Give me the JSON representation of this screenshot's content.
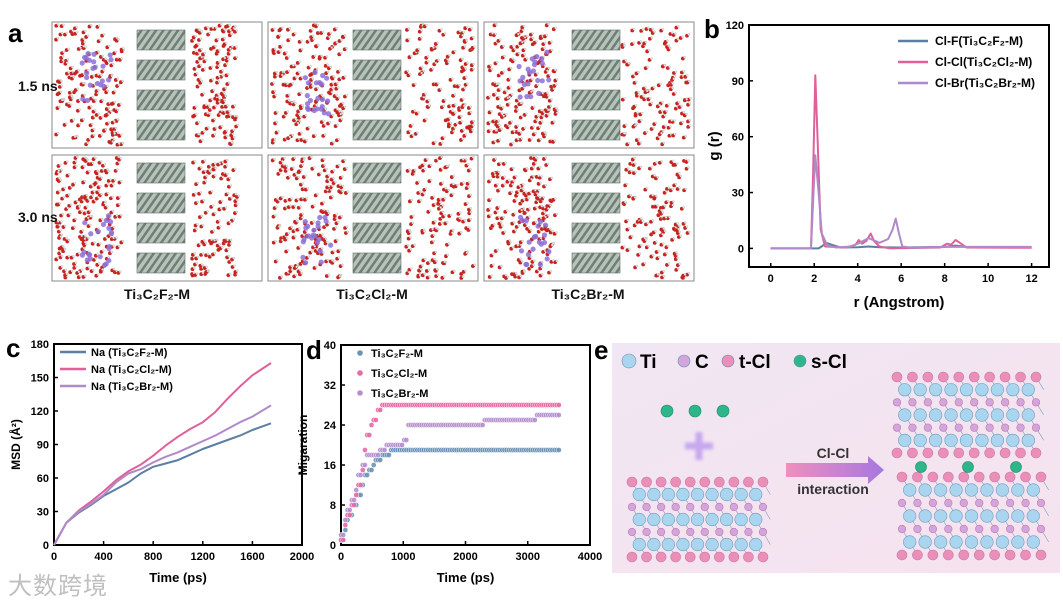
{
  "panels": {
    "a": "a",
    "b": "b",
    "c": "c",
    "d": "d",
    "e": "e"
  },
  "panel_a": {
    "rows": [
      "1.5 ns",
      "3.0 ns"
    ],
    "columns": [
      "Ti₃C₂F₂-M",
      "Ti₃C₂Cl₂-M",
      "Ti₃C₂Br₂-M"
    ]
  },
  "panel_e": {
    "legend": [
      {
        "label": "Ti",
        "color": "#a9d6ee"
      },
      {
        "label": "C",
        "color": "#d3a5dd"
      },
      {
        "label": "t-Cl",
        "color": "#ec8fb8"
      },
      {
        "label": "s-Cl",
        "color": "#2fb58a"
      }
    ],
    "arrow_top": "Cl-Cl",
    "arrow_bottom": "interaction"
  },
  "watermark": "大数跨境",
  "chart_data": [
    {
      "id": "b",
      "type": "line",
      "xlabel": "r (Angstrom)",
      "ylabel": "g (r)",
      "xlim": [
        -1,
        12.8
      ],
      "ylim": [
        -10,
        120
      ],
      "xticks": [
        0,
        2,
        4,
        6,
        8,
        10,
        12
      ],
      "yticks": [
        0,
        30,
        60,
        90,
        120
      ],
      "legend_position": "top-right",
      "series": [
        {
          "name": "Cl-F(Ti₃C₂F₂-M)",
          "color": "#5a7fa3",
          "points": [
            [
              0,
              0
            ],
            [
              2.2,
              0
            ],
            [
              2.4,
              1.5
            ],
            [
              2.55,
              3
            ],
            [
              2.8,
              2
            ],
            [
              3.2,
              0.5
            ],
            [
              4,
              0.6
            ],
            [
              4.5,
              1
            ],
            [
              5,
              0.6
            ],
            [
              6,
              0.5
            ],
            [
              8,
              0.8
            ],
            [
              8.5,
              1.5
            ],
            [
              9,
              0.8
            ],
            [
              10,
              0.5
            ],
            [
              12,
              0.5
            ]
          ]
        },
        {
          "name": "Cl-Cl(Ti₃C₂Cl₂-M)",
          "color": "#e0609a",
          "points": [
            [
              0,
              0
            ],
            [
              1.85,
              0
            ],
            [
              1.95,
              40
            ],
            [
              2.05,
              93
            ],
            [
              2.15,
              60
            ],
            [
              2.3,
              10
            ],
            [
              2.5,
              1
            ],
            [
              3.5,
              0.5
            ],
            [
              3.9,
              2
            ],
            [
              4.05,
              4.5
            ],
            [
              4.2,
              2.5
            ],
            [
              4.4,
              4
            ],
            [
              4.6,
              8
            ],
            [
              4.75,
              4
            ],
            [
              5,
              1
            ],
            [
              5.5,
              0
            ],
            [
              7.8,
              0.5
            ],
            [
              8.1,
              2.5
            ],
            [
              8.3,
              2
            ],
            [
              8.5,
              4.5
            ],
            [
              8.7,
              3
            ],
            [
              9,
              0.5
            ],
            [
              12,
              0.3
            ]
          ]
        },
        {
          "name": "Cl-Br(Ti₃C₂Br₂-M)",
          "color": "#b08ac8",
          "points": [
            [
              0,
              0
            ],
            [
              1.85,
              0
            ],
            [
              1.95,
              25
            ],
            [
              2.05,
              50
            ],
            [
              2.2,
              30
            ],
            [
              2.35,
              8
            ],
            [
              2.6,
              1.5
            ],
            [
              3,
              0.5
            ],
            [
              3.7,
              1
            ],
            [
              4,
              2.5
            ],
            [
              4.5,
              5.5
            ],
            [
              5,
              3
            ],
            [
              5.4,
              5
            ],
            [
              5.6,
              10
            ],
            [
              5.75,
              16
            ],
            [
              5.9,
              8
            ],
            [
              6.05,
              1
            ],
            [
              6.5,
              0.3
            ],
            [
              8,
              0.8
            ],
            [
              9,
              0.8
            ],
            [
              12,
              0.8
            ]
          ]
        }
      ]
    },
    {
      "id": "c",
      "type": "line",
      "xlabel": "Time (ps)",
      "ylabel": "MSD (Å²)",
      "xlim": [
        0,
        2000
      ],
      "ylim": [
        0,
        180
      ],
      "xticks": [
        0,
        400,
        800,
        1200,
        1600,
        2000
      ],
      "yticks": [
        0,
        30,
        60,
        90,
        120,
        150,
        180
      ],
      "legend_position": "top-left",
      "series": [
        {
          "name": "Na (Ti₃C₂F₂-M)",
          "color": "#5a7fa3",
          "points": [
            [
              0,
              0
            ],
            [
              100,
              20
            ],
            [
              200,
              29
            ],
            [
              300,
              36
            ],
            [
              400,
              44
            ],
            [
              500,
              50
            ],
            [
              600,
              56
            ],
            [
              700,
              64
            ],
            [
              800,
              70
            ],
            [
              900,
              73
            ],
            [
              1000,
              76
            ],
            [
              1100,
              81
            ],
            [
              1200,
              86
            ],
            [
              1300,
              90
            ],
            [
              1400,
              94
            ],
            [
              1500,
              98
            ],
            [
              1600,
              103
            ],
            [
              1750,
              109
            ]
          ]
        },
        {
          "name": "Na (Ti₃C₂Cl₂-M)",
          "color": "#e0609a",
          "points": [
            [
              0,
              0
            ],
            [
              100,
              20
            ],
            [
              200,
              31
            ],
            [
              300,
              39
            ],
            [
              400,
              48
            ],
            [
              500,
              58
            ],
            [
              600,
              66
            ],
            [
              700,
              72
            ],
            [
              800,
              80
            ],
            [
              900,
              89
            ],
            [
              1000,
              97
            ],
            [
              1100,
              104
            ],
            [
              1200,
              110
            ],
            [
              1300,
              119
            ],
            [
              1400,
              131
            ],
            [
              1500,
              142
            ],
            [
              1600,
              152
            ],
            [
              1750,
              163
            ]
          ]
        },
        {
          "name": "Na (Ti₃C₂Br₂-M)",
          "color": "#b08ac8",
          "points": [
            [
              0,
              0
            ],
            [
              100,
              20
            ],
            [
              200,
              30
            ],
            [
              300,
              37
            ],
            [
              400,
              45
            ],
            [
              500,
              56
            ],
            [
              600,
              64
            ],
            [
              700,
              68
            ],
            [
              800,
              74
            ],
            [
              900,
              79
            ],
            [
              1000,
              83
            ],
            [
              1100,
              88
            ],
            [
              1200,
              93
            ],
            [
              1300,
              98
            ],
            [
              1400,
              104
            ],
            [
              1500,
              110
            ],
            [
              1600,
              115
            ],
            [
              1750,
              125
            ]
          ]
        }
      ]
    },
    {
      "id": "d",
      "type": "scatter",
      "xlabel": "Time (ps)",
      "ylabel": "Migaration",
      "xlim": [
        0,
        4000
      ],
      "ylim": [
        0,
        40
      ],
      "xticks": [
        0,
        1000,
        2000,
        3000,
        4000
      ],
      "yticks": [
        0,
        8,
        16,
        24,
        32,
        40
      ],
      "legend_position": "top-left",
      "series": [
        {
          "name": "Ti₃C₂F₂-M",
          "color": "#6a93b8",
          "steps": [
            [
              0,
              1
            ],
            [
              40,
              3
            ],
            [
              80,
              5
            ],
            [
              140,
              6
            ],
            [
              200,
              8
            ],
            [
              260,
              10
            ],
            [
              320,
              12
            ],
            [
              380,
              14
            ],
            [
              430,
              15
            ],
            [
              500,
              16
            ],
            [
              560,
              17
            ],
            [
              640,
              18
            ],
            [
              800,
              19
            ],
            [
              3500,
              19
            ]
          ]
        },
        {
          "name": "Ti₃C₂Cl₂-M",
          "color": "#e86aa4",
          "steps": [
            [
              0,
              1
            ],
            [
              40,
              4
            ],
            [
              100,
              6
            ],
            [
              160,
              8
            ],
            [
              220,
              10
            ],
            [
              280,
              12
            ],
            [
              320,
              15
            ],
            [
              380,
              19
            ],
            [
              420,
              22
            ],
            [
              470,
              24
            ],
            [
              520,
              25
            ],
            [
              580,
              27
            ],
            [
              660,
              28
            ],
            [
              3500,
              28
            ]
          ]
        },
        {
          "name": "Ti₃C₂Br₂-M",
          "color": "#b58fd0",
          "steps": [
            [
              0,
              2
            ],
            [
              40,
              5
            ],
            [
              100,
              7
            ],
            [
              160,
              9
            ],
            [
              220,
              11
            ],
            [
              280,
              14
            ],
            [
              340,
              16
            ],
            [
              400,
              18
            ],
            [
              620,
              19
            ],
            [
              720,
              20
            ],
            [
              1000,
              21
            ],
            [
              1060,
              24
            ],
            [
              2300,
              25
            ],
            [
              3120,
              26
            ],
            [
              3500,
              26
            ]
          ]
        }
      ]
    }
  ]
}
